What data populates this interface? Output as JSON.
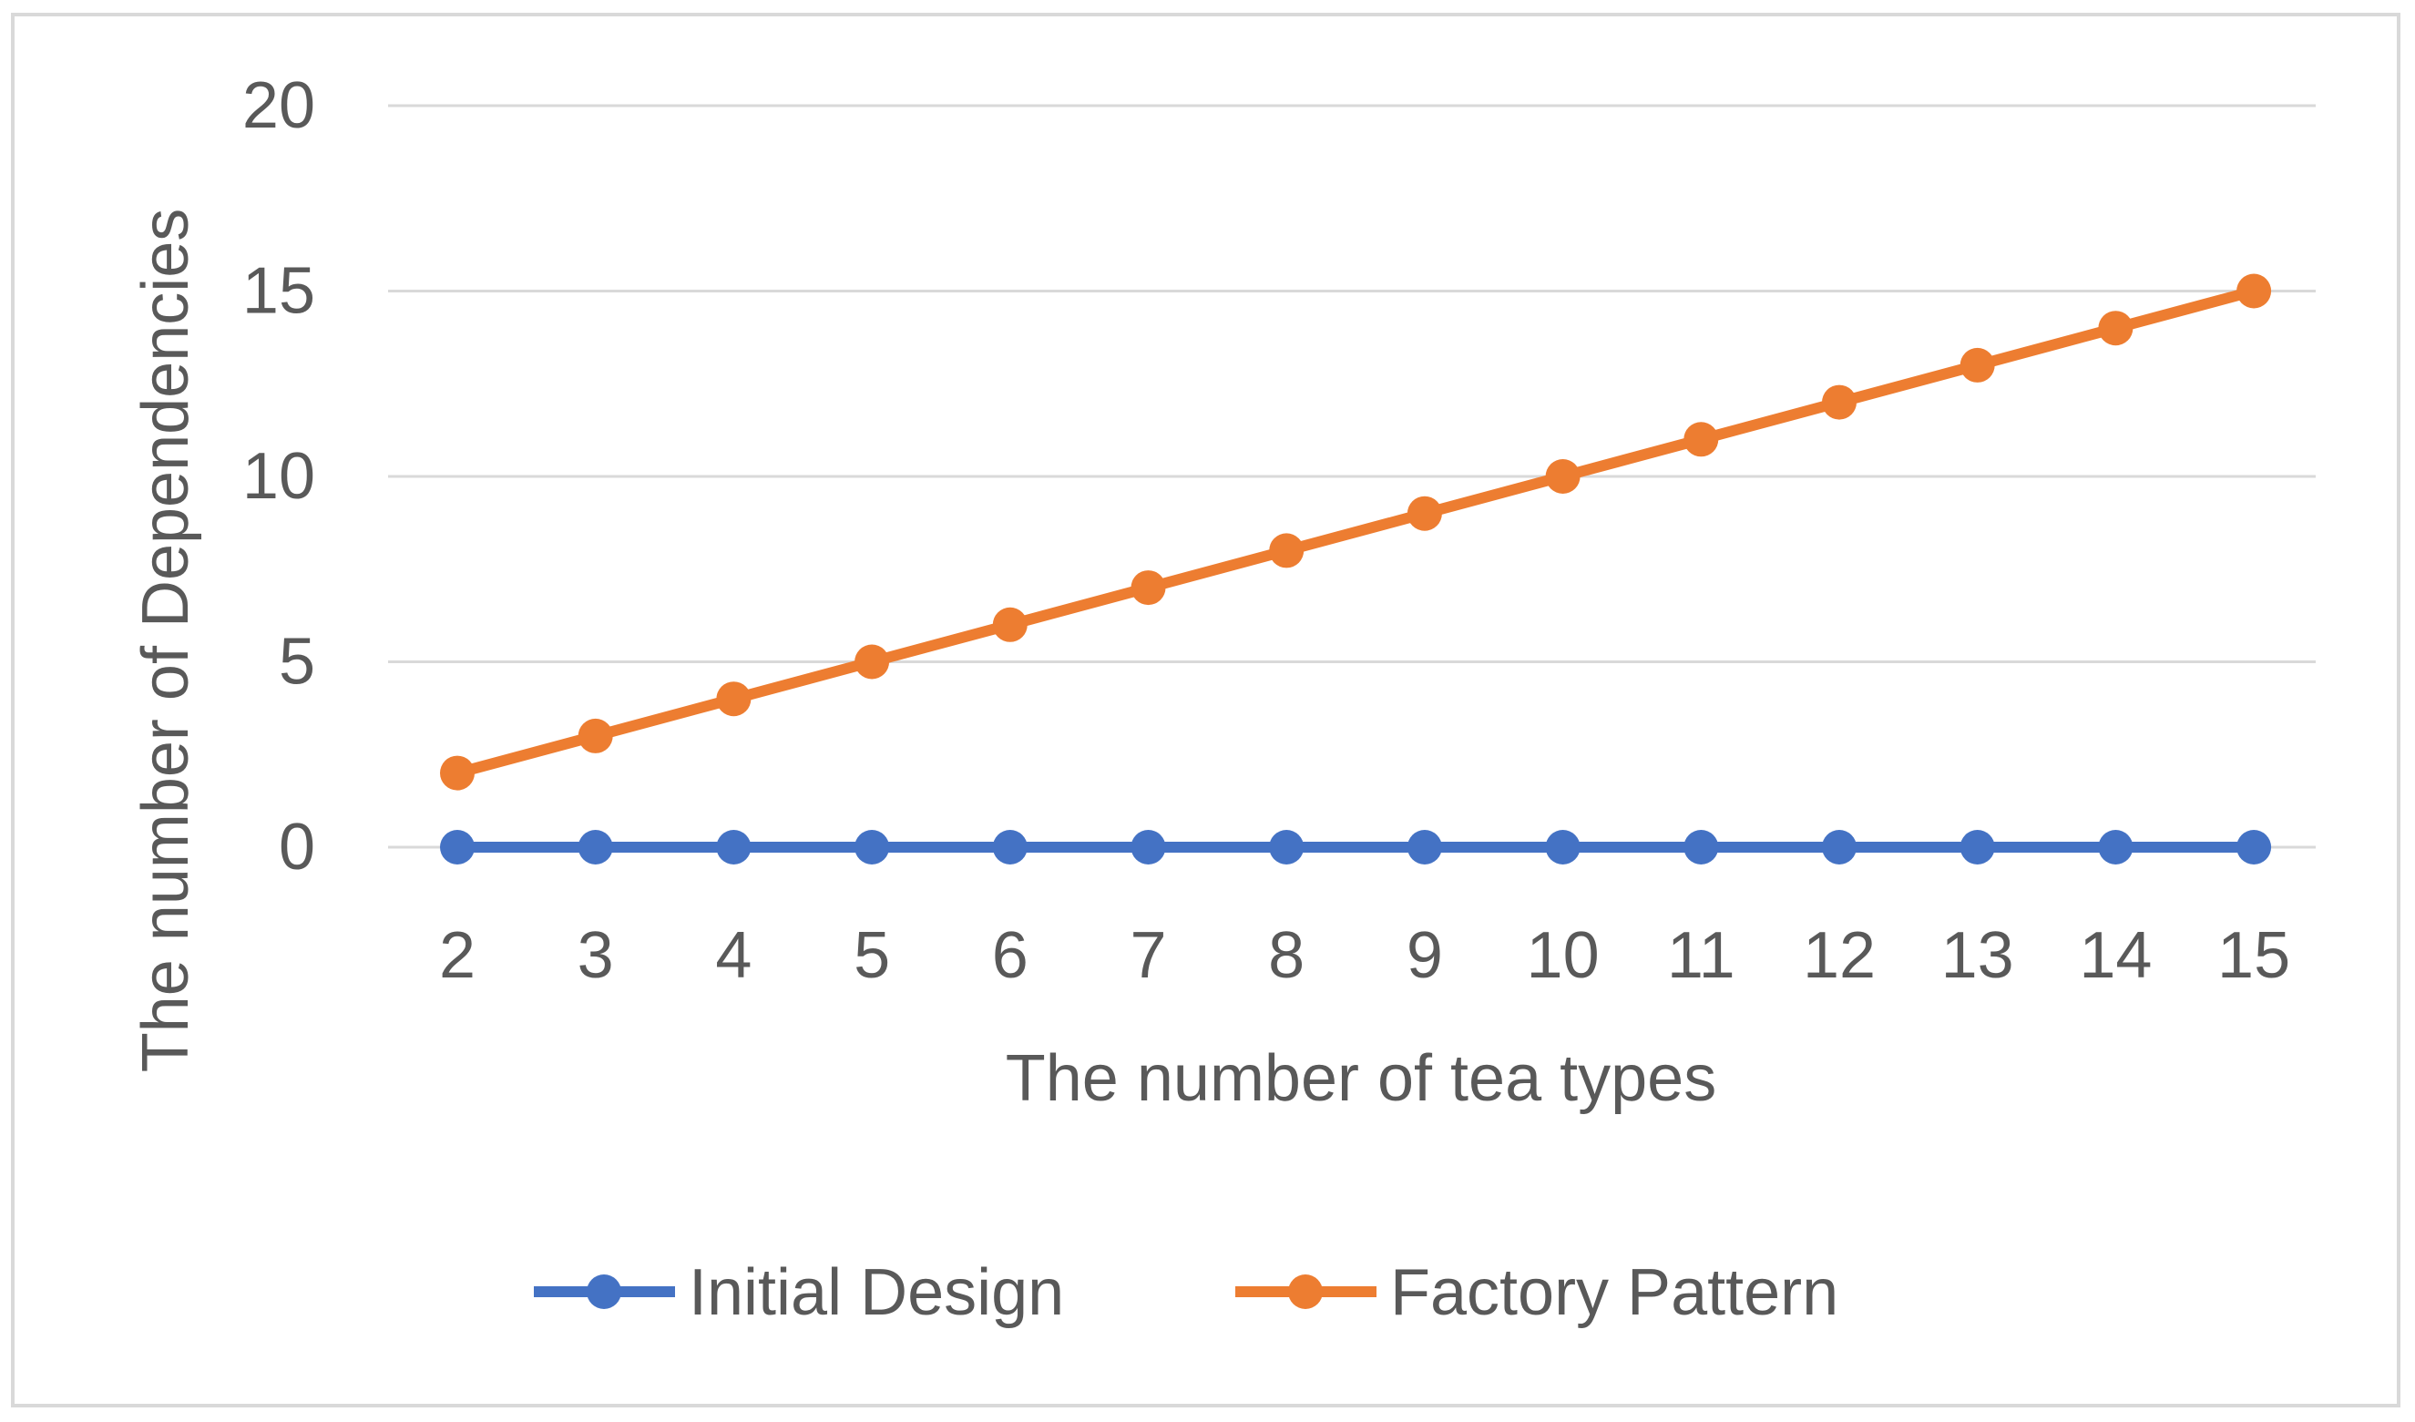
{
  "chart_data": {
    "type": "line",
    "title": "",
    "xlabel": "The number of tea types",
    "ylabel": "The number of Dependencies",
    "categories": [
      "2",
      "3",
      "4",
      "5",
      "6",
      "7",
      "8",
      "9",
      "10",
      "11",
      "12",
      "13",
      "14",
      "15"
    ],
    "yticks": [
      "0",
      "5",
      "10",
      "15",
      "20"
    ],
    "ylim": [
      0,
      20
    ],
    "grid": true,
    "legend_position": "bottom",
    "series": [
      {
        "name": "Initial Design",
        "color": "#4472c4",
        "values": [
          0,
          0,
          0,
          0,
          0,
          0,
          0,
          0,
          0,
          0,
          0,
          0,
          0,
          0
        ]
      },
      {
        "name": "Factory Pattern",
        "color": "#ed7d31",
        "values": [
          2,
          3,
          4,
          5,
          6,
          7,
          8,
          9,
          10,
          11,
          12,
          13,
          14,
          15
        ]
      }
    ]
  }
}
